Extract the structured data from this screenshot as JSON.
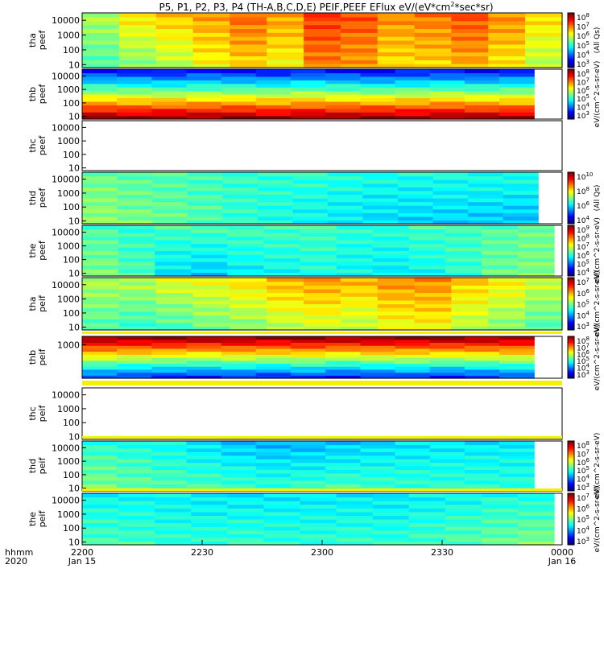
{
  "chart_data": {
    "type": "heatmap",
    "title": "P5, P1, P2, P3, P4 (TH-A,B,C,D,E) PEIF,PEEF EFlux eV/(eV*cm^2*sec*sr)",
    "title_parts": {
      "main": "P5, P1, P2, P3, P4 (TH-A,B,C,D,E) PEIF,PEEF EFlux eV/(eV*cm",
      "sup": "2",
      "end": "*sec*sr)"
    },
    "x_axis": {
      "label_line1": "hhmm",
      "label_line2": "2020",
      "ticks": [
        {
          "label": "2200",
          "sublabel": "Jan 15",
          "minutes": 0
        },
        {
          "label": "2230",
          "sublabel": "",
          "minutes": 30
        },
        {
          "label": "2300",
          "sublabel": "",
          "minutes": 60
        },
        {
          "label": "2330",
          "sublabel": "",
          "minutes": 90
        },
        {
          "label": "0000",
          "sublabel": "Jan 16",
          "minutes": 120
        }
      ],
      "range_minutes": [
        0,
        120
      ]
    },
    "panels": [
      {
        "id": "tha_peef",
        "probe": "tha",
        "product": "peef",
        "has_data": true,
        "y_ticks": [
          "10000",
          "1000",
          "100",
          "10"
        ],
        "y_ylim_log": [
          0.8,
          4.5
        ],
        "colorbar": {
          "ticks": [
            "10^8",
            "10^7",
            "10^6",
            "10^5",
            "10^4",
            "10^3"
          ],
          "unit_text": "(All Qs)"
        },
        "data_end_minutes": 120,
        "profile": [
          [
            0.45,
            0.55
          ],
          [
            0.5,
            0.65
          ],
          [
            0.55,
            0.68
          ],
          [
            0.62,
            0.72
          ],
          [
            0.66,
            0.78
          ],
          [
            0.62,
            0.72
          ],
          [
            0.75,
            0.82
          ],
          [
            0.72,
            0.8
          ],
          [
            0.65,
            0.74
          ],
          [
            0.66,
            0.76
          ],
          [
            0.7,
            0.8
          ],
          [
            0.64,
            0.74
          ],
          [
            0.55,
            0.66
          ]
        ]
      },
      {
        "id": "thb_peef",
        "probe": "thb",
        "product": "peef",
        "has_data": true,
        "y_ticks": [
          "10000",
          "1000",
          "100",
          "10"
        ],
        "y_ylim_log": [
          0.8,
          4.5
        ],
        "colorbar": {
          "ticks": [
            "10^8",
            "10^7",
            "10^6",
            "10^5",
            "10^4",
            "10^3"
          ],
          "unit_text": "eV/(cm^2-s-sr-eV)"
        },
        "data_end_minutes": 113,
        "profile": [
          [
            0.98,
            0.15
          ],
          [
            0.97,
            0.14
          ],
          [
            0.98,
            0.12
          ],
          [
            0.97,
            0.15
          ],
          [
            0.98,
            0.14
          ],
          [
            0.97,
            0.13
          ],
          [
            0.98,
            0.15
          ],
          [
            0.97,
            0.14
          ],
          [
            0.98,
            0.12
          ],
          [
            0.97,
            0.14
          ],
          [
            0.98,
            0.15
          ],
          [
            0.97,
            0.13
          ],
          [
            0.96,
            0.15
          ]
        ]
      },
      {
        "id": "thc_peef",
        "probe": "thc",
        "product": "peef",
        "has_data": false,
        "y_ticks": [
          "10000",
          "1000",
          "100",
          "10"
        ],
        "y_ylim_log": [
          0.8,
          4.5
        ],
        "colorbar": null,
        "data_end_minutes": 0,
        "profile": []
      },
      {
        "id": "thd_peef",
        "probe": "thd",
        "product": "peef",
        "has_data": true,
        "y_ticks": [
          "10000",
          "1000",
          "100",
          "10"
        ],
        "y_ylim_log": [
          0.8,
          4.5
        ],
        "colorbar": {
          "ticks": [
            "10^10",
            "10^8",
            "10^6",
            "10^4"
          ],
          "unit_text": "(All Qs)"
        },
        "data_end_minutes": 114,
        "profile": [
          [
            0.52,
            0.48
          ],
          [
            0.5,
            0.46
          ],
          [
            0.48,
            0.45
          ],
          [
            0.45,
            0.44
          ],
          [
            0.42,
            0.43
          ],
          [
            0.4,
            0.42
          ],
          [
            0.38,
            0.42
          ],
          [
            0.36,
            0.41
          ],
          [
            0.34,
            0.4
          ],
          [
            0.33,
            0.4
          ],
          [
            0.33,
            0.4
          ],
          [
            0.32,
            0.4
          ],
          [
            0.31,
            0.4
          ]
        ]
      },
      {
        "id": "the_peef",
        "probe": "the",
        "product": "peef",
        "has_data": true,
        "y_ticks": [
          "10000",
          "1000",
          "100",
          "10"
        ],
        "y_ylim_log": [
          0.8,
          4.5
        ],
        "colorbar": {
          "ticks": [
            "10^9",
            "10^8",
            "10^7",
            "10^6",
            "10^5",
            "10^4"
          ],
          "unit_text": "eV/(cm^2-s-sr-eV)"
        },
        "data_end_minutes": 118,
        "profile": [
          [
            0.5,
            0.45
          ],
          [
            0.45,
            0.42
          ],
          [
            0.35,
            0.44
          ],
          [
            0.32,
            0.45
          ],
          [
            0.36,
            0.45
          ],
          [
            0.38,
            0.44
          ],
          [
            0.4,
            0.44
          ],
          [
            0.38,
            0.42
          ],
          [
            0.36,
            0.42
          ],
          [
            0.38,
            0.44
          ],
          [
            0.42,
            0.44
          ],
          [
            0.48,
            0.46
          ],
          [
            0.5,
            0.48
          ]
        ]
      },
      {
        "id": "tha_peif",
        "probe": "tha",
        "product": "peif",
        "has_data": true,
        "y_ticks": [
          "10000",
          "1000",
          "100",
          "10"
        ],
        "y_ylim_log": [
          0.8,
          4.5
        ],
        "colorbar": {
          "ticks": [
            "10^7",
            "10^6",
            "10^5",
            "10^4",
            "10^3"
          ],
          "unit_text": "eV/(cm^2-s-sr-eV)"
        },
        "data_end_minutes": 120,
        "profile": [
          [
            0.45,
            0.55
          ],
          [
            0.42,
            0.55
          ],
          [
            0.44,
            0.6
          ],
          [
            0.48,
            0.62
          ],
          [
            0.5,
            0.66
          ],
          [
            0.55,
            0.7
          ],
          [
            0.58,
            0.72
          ],
          [
            0.55,
            0.7
          ],
          [
            0.6,
            0.74
          ],
          [
            0.62,
            0.74
          ],
          [
            0.55,
            0.68
          ],
          [
            0.5,
            0.64
          ],
          [
            0.45,
            0.58
          ]
        ]
      },
      {
        "id": "thb_peif",
        "probe": "thb",
        "product": "peif",
        "has_data": true,
        "y_ticks": [
          "1000"
        ],
        "y_ylim_log": [
          1.0,
          3.5
        ],
        "colorbar": {
          "ticks": [
            "10^8",
            "10^7",
            "10^6",
            "10^5",
            "10^4",
            "10^3"
          ],
          "unit_text": "eV/(cm^2-s-sr-eV)"
        },
        "data_end_minutes": 113,
        "profile": [
          [
            0.2,
            0.98
          ],
          [
            0.18,
            0.97
          ],
          [
            0.16,
            0.98
          ],
          [
            0.15,
            0.97
          ],
          [
            0.17,
            0.98
          ],
          [
            0.15,
            0.97
          ],
          [
            0.18,
            0.98
          ],
          [
            0.14,
            0.97
          ],
          [
            0.16,
            0.98
          ],
          [
            0.18,
            0.97
          ],
          [
            0.15,
            0.98
          ],
          [
            0.17,
            0.97
          ],
          [
            0.2,
            0.96
          ]
        ]
      },
      {
        "id": "thc_peif",
        "probe": "thc",
        "product": "peif",
        "has_data": false,
        "y_ticks": [
          "10000",
          "1000",
          "100",
          "10"
        ],
        "y_ylim_log": [
          0.8,
          4.5
        ],
        "colorbar": null,
        "data_end_minutes": 0,
        "profile": []
      },
      {
        "id": "thd_peif",
        "probe": "thd",
        "product": "peif",
        "has_data": true,
        "y_ticks": [
          "10000",
          "1000",
          "100",
          "10"
        ],
        "y_ylim_log": [
          0.8,
          4.5
        ],
        "colorbar": {
          "ticks": [
            "10^8",
            "10^7",
            "10^6",
            "10^5",
            "10^4",
            "10^3"
          ],
          "unit_text": "eV/(cm^2-s-sr-eV)"
        },
        "data_end_minutes": 113,
        "profile": [
          [
            0.5,
            0.42
          ],
          [
            0.48,
            0.4
          ],
          [
            0.46,
            0.38
          ],
          [
            0.45,
            0.35
          ],
          [
            0.44,
            0.32
          ],
          [
            0.43,
            0.3
          ],
          [
            0.44,
            0.3
          ],
          [
            0.45,
            0.32
          ],
          [
            0.44,
            0.34
          ],
          [
            0.43,
            0.35
          ],
          [
            0.42,
            0.36
          ],
          [
            0.42,
            0.36
          ],
          [
            0.42,
            0.36
          ]
        ]
      },
      {
        "id": "the_peif",
        "probe": "the",
        "product": "peif",
        "has_data": true,
        "y_ticks": [
          "10000",
          "1000",
          "100",
          "10"
        ],
        "y_ylim_log": [
          0.8,
          4.5
        ],
        "colorbar": {
          "ticks": [
            "10^7",
            "10^6",
            "10^5",
            "10^4",
            "10^3"
          ],
          "unit_text": "eV/(cm^2-s-sr-eV)"
        },
        "data_end_minutes": 118,
        "profile": [
          [
            0.45,
            0.38
          ],
          [
            0.44,
            0.38
          ],
          [
            0.42,
            0.37
          ],
          [
            0.42,
            0.36
          ],
          [
            0.43,
            0.36
          ],
          [
            0.42,
            0.36
          ],
          [
            0.42,
            0.36
          ],
          [
            0.43,
            0.36
          ],
          [
            0.42,
            0.36
          ],
          [
            0.44,
            0.37
          ],
          [
            0.46,
            0.38
          ],
          [
            0.48,
            0.4
          ],
          [
            0.5,
            0.4
          ]
        ]
      }
    ]
  }
}
